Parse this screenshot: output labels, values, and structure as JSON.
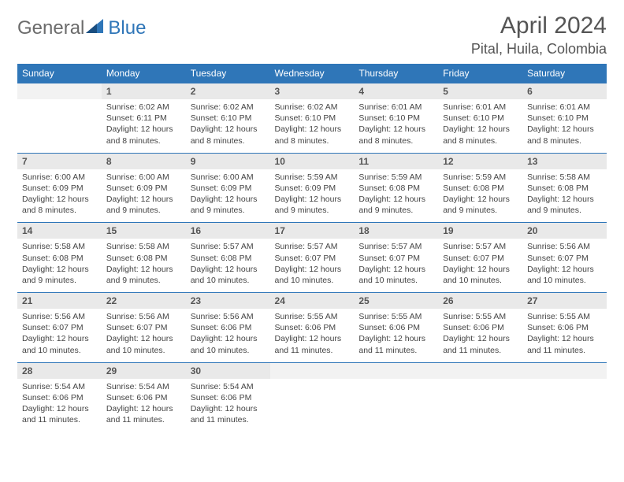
{
  "logo": {
    "text1": "General",
    "text2": "Blue"
  },
  "title": "April 2024",
  "location": "Pital, Huila, Colombia",
  "colors": {
    "header_bg": "#2f76b8",
    "header_text": "#ffffff",
    "daynum_bg": "#e9e9e9",
    "empty_bg": "#f2f2f2",
    "border": "#2f76b8",
    "body_text": "#444444",
    "title_text": "#555555"
  },
  "weekdays": [
    "Sunday",
    "Monday",
    "Tuesday",
    "Wednesday",
    "Thursday",
    "Friday",
    "Saturday"
  ],
  "weeks": [
    {
      "nums": [
        "",
        "1",
        "2",
        "3",
        "4",
        "5",
        "6"
      ],
      "cells": [
        null,
        {
          "sr": "Sunrise: 6:02 AM",
          "ss": "Sunset: 6:11 PM",
          "d1": "Daylight: 12 hours",
          "d2": "and 8 minutes."
        },
        {
          "sr": "Sunrise: 6:02 AM",
          "ss": "Sunset: 6:10 PM",
          "d1": "Daylight: 12 hours",
          "d2": "and 8 minutes."
        },
        {
          "sr": "Sunrise: 6:02 AM",
          "ss": "Sunset: 6:10 PM",
          "d1": "Daylight: 12 hours",
          "d2": "and 8 minutes."
        },
        {
          "sr": "Sunrise: 6:01 AM",
          "ss": "Sunset: 6:10 PM",
          "d1": "Daylight: 12 hours",
          "d2": "and 8 minutes."
        },
        {
          "sr": "Sunrise: 6:01 AM",
          "ss": "Sunset: 6:10 PM",
          "d1": "Daylight: 12 hours",
          "d2": "and 8 minutes."
        },
        {
          "sr": "Sunrise: 6:01 AM",
          "ss": "Sunset: 6:10 PM",
          "d1": "Daylight: 12 hours",
          "d2": "and 8 minutes."
        }
      ]
    },
    {
      "nums": [
        "7",
        "8",
        "9",
        "10",
        "11",
        "12",
        "13"
      ],
      "cells": [
        {
          "sr": "Sunrise: 6:00 AM",
          "ss": "Sunset: 6:09 PM",
          "d1": "Daylight: 12 hours",
          "d2": "and 8 minutes."
        },
        {
          "sr": "Sunrise: 6:00 AM",
          "ss": "Sunset: 6:09 PM",
          "d1": "Daylight: 12 hours",
          "d2": "and 9 minutes."
        },
        {
          "sr": "Sunrise: 6:00 AM",
          "ss": "Sunset: 6:09 PM",
          "d1": "Daylight: 12 hours",
          "d2": "and 9 minutes."
        },
        {
          "sr": "Sunrise: 5:59 AM",
          "ss": "Sunset: 6:09 PM",
          "d1": "Daylight: 12 hours",
          "d2": "and 9 minutes."
        },
        {
          "sr": "Sunrise: 5:59 AM",
          "ss": "Sunset: 6:08 PM",
          "d1": "Daylight: 12 hours",
          "d2": "and 9 minutes."
        },
        {
          "sr": "Sunrise: 5:59 AM",
          "ss": "Sunset: 6:08 PM",
          "d1": "Daylight: 12 hours",
          "d2": "and 9 minutes."
        },
        {
          "sr": "Sunrise: 5:58 AM",
          "ss": "Sunset: 6:08 PM",
          "d1": "Daylight: 12 hours",
          "d2": "and 9 minutes."
        }
      ]
    },
    {
      "nums": [
        "14",
        "15",
        "16",
        "17",
        "18",
        "19",
        "20"
      ],
      "cells": [
        {
          "sr": "Sunrise: 5:58 AM",
          "ss": "Sunset: 6:08 PM",
          "d1": "Daylight: 12 hours",
          "d2": "and 9 minutes."
        },
        {
          "sr": "Sunrise: 5:58 AM",
          "ss": "Sunset: 6:08 PM",
          "d1": "Daylight: 12 hours",
          "d2": "and 9 minutes."
        },
        {
          "sr": "Sunrise: 5:57 AM",
          "ss": "Sunset: 6:08 PM",
          "d1": "Daylight: 12 hours",
          "d2": "and 10 minutes."
        },
        {
          "sr": "Sunrise: 5:57 AM",
          "ss": "Sunset: 6:07 PM",
          "d1": "Daylight: 12 hours",
          "d2": "and 10 minutes."
        },
        {
          "sr": "Sunrise: 5:57 AM",
          "ss": "Sunset: 6:07 PM",
          "d1": "Daylight: 12 hours",
          "d2": "and 10 minutes."
        },
        {
          "sr": "Sunrise: 5:57 AM",
          "ss": "Sunset: 6:07 PM",
          "d1": "Daylight: 12 hours",
          "d2": "and 10 minutes."
        },
        {
          "sr": "Sunrise: 5:56 AM",
          "ss": "Sunset: 6:07 PM",
          "d1": "Daylight: 12 hours",
          "d2": "and 10 minutes."
        }
      ]
    },
    {
      "nums": [
        "21",
        "22",
        "23",
        "24",
        "25",
        "26",
        "27"
      ],
      "cells": [
        {
          "sr": "Sunrise: 5:56 AM",
          "ss": "Sunset: 6:07 PM",
          "d1": "Daylight: 12 hours",
          "d2": "and 10 minutes."
        },
        {
          "sr": "Sunrise: 5:56 AM",
          "ss": "Sunset: 6:07 PM",
          "d1": "Daylight: 12 hours",
          "d2": "and 10 minutes."
        },
        {
          "sr": "Sunrise: 5:56 AM",
          "ss": "Sunset: 6:06 PM",
          "d1": "Daylight: 12 hours",
          "d2": "and 10 minutes."
        },
        {
          "sr": "Sunrise: 5:55 AM",
          "ss": "Sunset: 6:06 PM",
          "d1": "Daylight: 12 hours",
          "d2": "and 11 minutes."
        },
        {
          "sr": "Sunrise: 5:55 AM",
          "ss": "Sunset: 6:06 PM",
          "d1": "Daylight: 12 hours",
          "d2": "and 11 minutes."
        },
        {
          "sr": "Sunrise: 5:55 AM",
          "ss": "Sunset: 6:06 PM",
          "d1": "Daylight: 12 hours",
          "d2": "and 11 minutes."
        },
        {
          "sr": "Sunrise: 5:55 AM",
          "ss": "Sunset: 6:06 PM",
          "d1": "Daylight: 12 hours",
          "d2": "and 11 minutes."
        }
      ]
    },
    {
      "nums": [
        "28",
        "29",
        "30",
        "",
        "",
        "",
        ""
      ],
      "cells": [
        {
          "sr": "Sunrise: 5:54 AM",
          "ss": "Sunset: 6:06 PM",
          "d1": "Daylight: 12 hours",
          "d2": "and 11 minutes."
        },
        {
          "sr": "Sunrise: 5:54 AM",
          "ss": "Sunset: 6:06 PM",
          "d1": "Daylight: 12 hours",
          "d2": "and 11 minutes."
        },
        {
          "sr": "Sunrise: 5:54 AM",
          "ss": "Sunset: 6:06 PM",
          "d1": "Daylight: 12 hours",
          "d2": "and 11 minutes."
        },
        null,
        null,
        null,
        null
      ]
    }
  ]
}
